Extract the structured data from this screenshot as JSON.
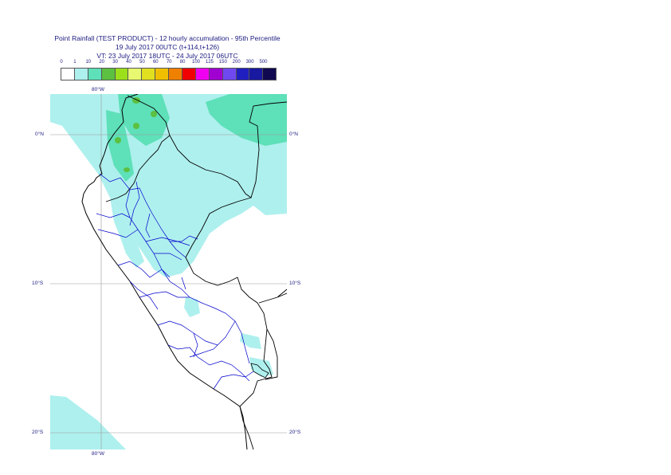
{
  "title": {
    "line1": "Point Rainfall (TEST PRODUCT) - 12 hourly accumulation - 95th Percentile",
    "line2": "19 July 2017 00UTC (t+114,t+126)",
    "line3": "VT: 23 July 2017 18UTC - 24 July 2017 06UTC"
  },
  "legend": {
    "labels": [
      "0",
      "1",
      "10",
      "20",
      "30",
      "40",
      "50",
      "60",
      "70",
      "80",
      "100",
      "125",
      "150",
      "200",
      "300",
      "500"
    ],
    "colors": [
      "#ffffff",
      "#aef0ee",
      "#5ee0b8",
      "#5cc040",
      "#9ce01c",
      "#e8f870",
      "#e0e020",
      "#f0c000",
      "#f08000",
      "#f00000",
      "#f000f0",
      "#a000d0",
      "#7048f0",
      "#2020c0",
      "#1818a0",
      "#100850"
    ]
  },
  "map": {
    "lat_labels": [
      {
        "text": "0°N",
        "lat": 0
      },
      {
        "text": "10°S",
        "lat": -10
      },
      {
        "text": "20°S",
        "lat": -20
      }
    ],
    "lon_label_top": "80°W",
    "lon_label_bottom": "80°W",
    "colors": {
      "ocean": "#ffffff",
      "light_rain": "#aef0ee",
      "moderate_rain": "#5ee0b8",
      "heavier_rain": "#5cc040",
      "grid": "#999999",
      "coast": "#000000",
      "border": "#0000cc"
    }
  }
}
